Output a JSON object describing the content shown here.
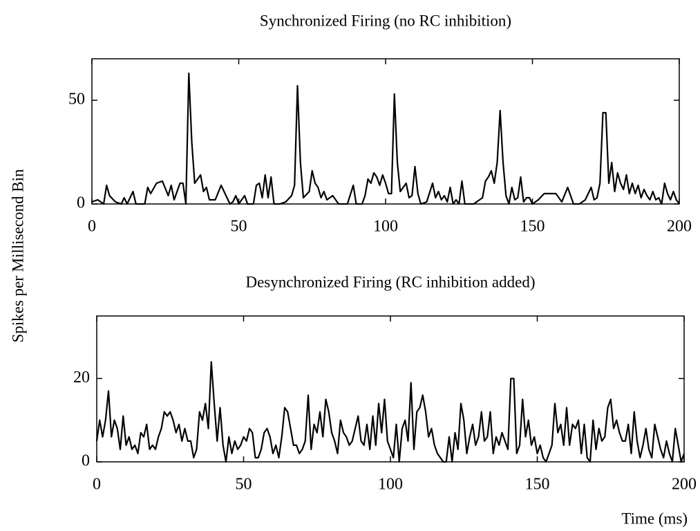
{
  "chart_data": [
    {
      "type": "line",
      "title": "Synchronized Firing (no RC inhibition)",
      "ylabel": "Spikes per Millisecond Bin",
      "x": [
        0,
        2,
        4,
        5,
        6,
        8,
        10,
        11,
        12,
        14,
        15,
        18,
        19,
        20,
        22,
        24,
        26,
        27,
        28,
        30,
        31,
        32,
        33,
        34,
        35,
        36,
        37,
        38,
        39,
        40,
        42,
        44,
        45,
        47,
        48,
        49,
        50,
        52,
        53,
        55,
        56,
        57,
        58,
        59,
        60,
        61,
        62,
        64,
        66,
        68,
        69,
        70,
        71,
        72,
        74,
        75,
        76,
        77,
        78,
        79,
        80,
        82,
        84,
        87,
        89,
        90,
        92,
        93,
        94,
        95,
        96,
        97,
        98,
        99,
        100,
        101,
        102,
        103,
        104,
        105,
        106,
        107,
        108,
        109,
        110,
        111,
        112,
        114,
        116,
        117,
        118,
        119,
        120,
        121,
        122,
        123,
        124,
        125,
        126,
        127,
        130,
        131,
        133,
        134,
        135,
        136,
        137,
        138,
        139,
        140,
        141,
        142,
        143,
        144,
        145,
        146,
        147,
        148,
        149,
        150,
        152,
        154,
        156,
        158,
        160,
        162,
        164,
        166,
        168,
        170,
        171,
        172,
        173,
        174,
        175,
        176,
        177,
        178,
        179,
        180,
        181,
        182,
        183,
        184,
        185,
        186,
        187,
        188,
        189,
        190,
        191,
        192,
        193,
        194,
        195,
        196,
        197,
        198,
        199,
        200
      ],
      "values": [
        1,
        2,
        0,
        9,
        4,
        1,
        0,
        3,
        0,
        6,
        0,
        0,
        8,
        5,
        10,
        11,
        4,
        9,
        2,
        10,
        10,
        0,
        63,
        30,
        10,
        12,
        14,
        6,
        8,
        2,
        2,
        9,
        6,
        0,
        1,
        4,
        0,
        4,
        0,
        0,
        9,
        10,
        3,
        14,
        3,
        13,
        0,
        0,
        1,
        4,
        9,
        57,
        20,
        3,
        6,
        16,
        10,
        8,
        3,
        6,
        2,
        4,
        0,
        0,
        9,
        0,
        0,
        4,
        12,
        10,
        15,
        13,
        9,
        14,
        10,
        5,
        5,
        53,
        20,
        6,
        8,
        10,
        3,
        4,
        18,
        5,
        0,
        1,
        10,
        3,
        6,
        2,
        4,
        1,
        8,
        0,
        2,
        0,
        11,
        0,
        0,
        1,
        3,
        11,
        13,
        16,
        10,
        20,
        45,
        20,
        4,
        0,
        8,
        2,
        3,
        13,
        1,
        3,
        3,
        0,
        2,
        5,
        5,
        5,
        1,
        8,
        0,
        0,
        2,
        8,
        2,
        3,
        10,
        44,
        44,
        10,
        20,
        6,
        15,
        10,
        7,
        14,
        5,
        10,
        5,
        9,
        3,
        7,
        4,
        2,
        6,
        2,
        3,
        0,
        10,
        5,
        2,
        6,
        2,
        0
      ],
      "color": "#000000",
      "xlim": [
        0,
        200
      ],
      "xticks": [
        0,
        50,
        100,
        150,
        200
      ],
      "ylim": [
        0,
        70
      ],
      "yticks": [
        0,
        50
      ]
    },
    {
      "type": "line",
      "title": "Desynchronized Firing (RC inhibition added)",
      "xlabel": "Time (ms)",
      "x": [
        0,
        1,
        2,
        3,
        4,
        5,
        6,
        7,
        8,
        9,
        10,
        11,
        12,
        13,
        14,
        15,
        16,
        17,
        18,
        19,
        20,
        21,
        22,
        23,
        24,
        25,
        26,
        27,
        28,
        29,
        30,
        31,
        32,
        33,
        34,
        35,
        36,
        37,
        38,
        39,
        40,
        41,
        42,
        43,
        44,
        45,
        46,
        47,
        48,
        49,
        50,
        51,
        52,
        53,
        54,
        55,
        56,
        57,
        58,
        59,
        60,
        61,
        62,
        63,
        64,
        65,
        66,
        67,
        68,
        69,
        70,
        71,
        72,
        73,
        74,
        75,
        76,
        77,
        78,
        79,
        80,
        81,
        82,
        83,
        84,
        85,
        86,
        87,
        88,
        89,
        90,
        91,
        92,
        93,
        94,
        95,
        96,
        97,
        98,
        99,
        100,
        101,
        102,
        103,
        104,
        105,
        106,
        107,
        108,
        109,
        110,
        111,
        112,
        113,
        114,
        115,
        116,
        117,
        118,
        119,
        120,
        121,
        122,
        123,
        124,
        125,
        126,
        127,
        128,
        129,
        130,
        131,
        132,
        133,
        134,
        135,
        136,
        137,
        138,
        139,
        140,
        141,
        142,
        143,
        144,
        145,
        146,
        147,
        148,
        149,
        150,
        151,
        152,
        153,
        154,
        155,
        156,
        157,
        158,
        159,
        160,
        161,
        162,
        163,
        164,
        165,
        166,
        167,
        168,
        169,
        170,
        171,
        172,
        173,
        174,
        175,
        176,
        177,
        178,
        179,
        180,
        181,
        182,
        183,
        184,
        185,
        186,
        187,
        188,
        189,
        190,
        191,
        192,
        193,
        194,
        195,
        196,
        197,
        198,
        199,
        200
      ],
      "values": [
        5,
        10,
        6,
        10,
        17,
        6,
        10,
        8,
        3,
        11,
        4,
        6,
        3,
        4,
        2,
        7,
        6,
        9,
        3,
        4,
        3,
        6,
        8,
        12,
        11,
        12,
        10,
        7,
        9,
        5,
        8,
        5,
        5,
        1,
        3,
        12,
        10,
        14,
        8,
        24,
        14,
        5,
        13,
        4,
        0,
        6,
        2,
        5,
        3,
        4,
        6,
        5,
        8,
        7,
        1,
        1,
        3,
        7,
        8,
        6,
        2,
        4,
        1,
        6,
        13,
        12,
        8,
        4,
        4,
        2,
        3,
        5,
        16,
        3,
        9,
        7,
        12,
        6,
        15,
        12,
        7,
        5,
        2,
        10,
        7,
        6,
        4,
        5,
        8,
        11,
        5,
        4,
        9,
        3,
        11,
        4,
        14,
        7,
        15,
        5,
        3,
        1,
        9,
        0,
        8,
        10,
        5,
        19,
        3,
        12,
        13,
        16,
        12,
        6,
        8,
        4,
        2,
        1,
        0,
        0,
        6,
        0,
        7,
        3,
        14,
        10,
        2,
        6,
        9,
        4,
        6,
        12,
        5,
        6,
        12,
        2,
        6,
        4,
        7,
        5,
        3,
        20,
        20,
        2,
        4,
        15,
        6,
        10,
        4,
        6,
        2,
        4,
        1,
        0,
        2,
        4,
        14,
        7,
        9,
        4,
        13,
        4,
        9,
        8,
        10,
        2,
        9,
        1,
        0,
        10,
        3,
        8,
        5,
        6,
        13,
        15,
        8,
        10,
        7,
        5,
        5,
        9,
        2,
        12,
        5,
        1,
        4,
        8,
        3,
        1,
        9,
        6,
        3,
        1,
        5,
        2,
        0,
        8,
        4,
        0,
        2
      ],
      "color": "#000000",
      "xlim": [
        0,
        200
      ],
      "xticks": [
        0,
        50,
        100,
        150,
        200
      ],
      "ylim": [
        0,
        35
      ],
      "yticks": [
        0,
        20
      ]
    }
  ]
}
